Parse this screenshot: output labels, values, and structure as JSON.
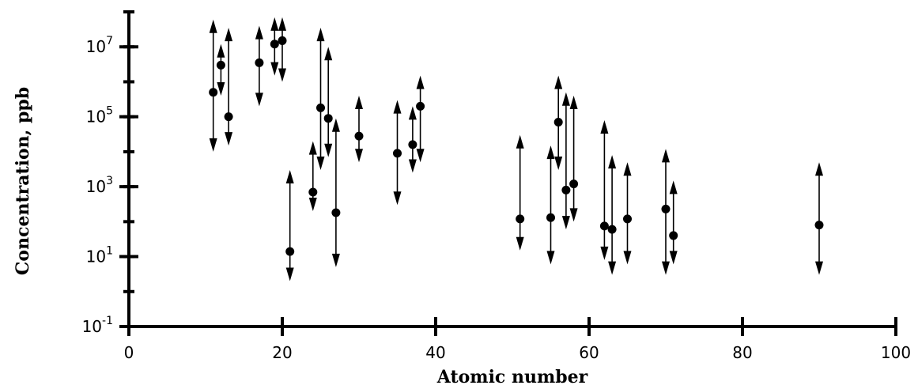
{
  "chart_data": {
    "type": "scatter",
    "xlabel": "Atomic number",
    "ylabel": "Concentration, ppb",
    "xlim": [
      0,
      100
    ],
    "ylim": [
      0.1,
      100000000
    ],
    "yscale": "log",
    "grid": false,
    "legend": "none",
    "x_ticks": [
      {
        "value": 0,
        "label": "0"
      },
      {
        "value": 20,
        "label": "20"
      },
      {
        "value": 40,
        "label": "40"
      },
      {
        "value": 60,
        "label": "60"
      },
      {
        "value": 80,
        "label": "80"
      },
      {
        "value": 100,
        "label": "100"
      }
    ],
    "y_ticks": [
      {
        "value": 0.1,
        "base": "10",
        "exp": "-1"
      },
      {
        "value": 10,
        "base": "10",
        "exp": "1"
      },
      {
        "value": 1000,
        "base": "10",
        "exp": "3"
      },
      {
        "value": 100000,
        "base": "10",
        "exp": "5"
      },
      {
        "value": 10000000,
        "base": "10",
        "exp": "7"
      }
    ],
    "points": [
      {
        "x": 11,
        "y": 500000,
        "low": 10000,
        "high": 60000000
      },
      {
        "x": 12,
        "y": 3000000,
        "low": 400000,
        "high": 12000000
      },
      {
        "x": 13,
        "y": 100000,
        "low": 15000,
        "high": 35000000
      },
      {
        "x": 17,
        "y": 3500000,
        "low": 200000,
        "high": 40000000
      },
      {
        "x": 19,
        "y": 12000000,
        "low": 1500000,
        "high": 70000000
      },
      {
        "x": 20,
        "y": 15000000,
        "low": 1000000,
        "high": 70000000
      },
      {
        "x": 21,
        "y": 14,
        "low": 2,
        "high": 3000
      },
      {
        "x": 24,
        "y": 700,
        "low": 200,
        "high": 20000
      },
      {
        "x": 25,
        "y": 180000,
        "low": 3000,
        "high": 35000000
      },
      {
        "x": 26,
        "y": 90000,
        "low": 7000,
        "high": 10000000
      },
      {
        "x": 27,
        "y": 180,
        "low": 5,
        "high": 90000
      },
      {
        "x": 30,
        "y": 28000,
        "low": 5000,
        "high": 400000
      },
      {
        "x": 35,
        "y": 9000,
        "low": 300,
        "high": 300000
      },
      {
        "x": 37,
        "y": 16000,
        "low": 2500,
        "high": 200000
      },
      {
        "x": 38,
        "y": 200000,
        "low": 5000,
        "high": 1500000
      },
      {
        "x": 51,
        "y": 120,
        "low": 15,
        "high": 30000
      },
      {
        "x": 55,
        "y": 130,
        "low": 6,
        "high": 15000
      },
      {
        "x": 56,
        "y": 70000,
        "low": 3000,
        "high": 1500000
      },
      {
        "x": 57,
        "y": 800,
        "low": 60,
        "high": 500000
      },
      {
        "x": 58,
        "y": 1200,
        "low": 100,
        "high": 400000
      },
      {
        "x": 62,
        "y": 75,
        "low": 8,
        "high": 80000
      },
      {
        "x": 63,
        "y": 60,
        "low": 3,
        "high": 8000
      },
      {
        "x": 65,
        "y": 120,
        "low": 6,
        "high": 5000
      },
      {
        "x": 70,
        "y": 230,
        "low": 3,
        "high": 12000
      },
      {
        "x": 71,
        "y": 40,
        "low": 6,
        "high": 1500
      },
      {
        "x": 90,
        "y": 80,
        "low": 3,
        "high": 5000
      }
    ]
  }
}
